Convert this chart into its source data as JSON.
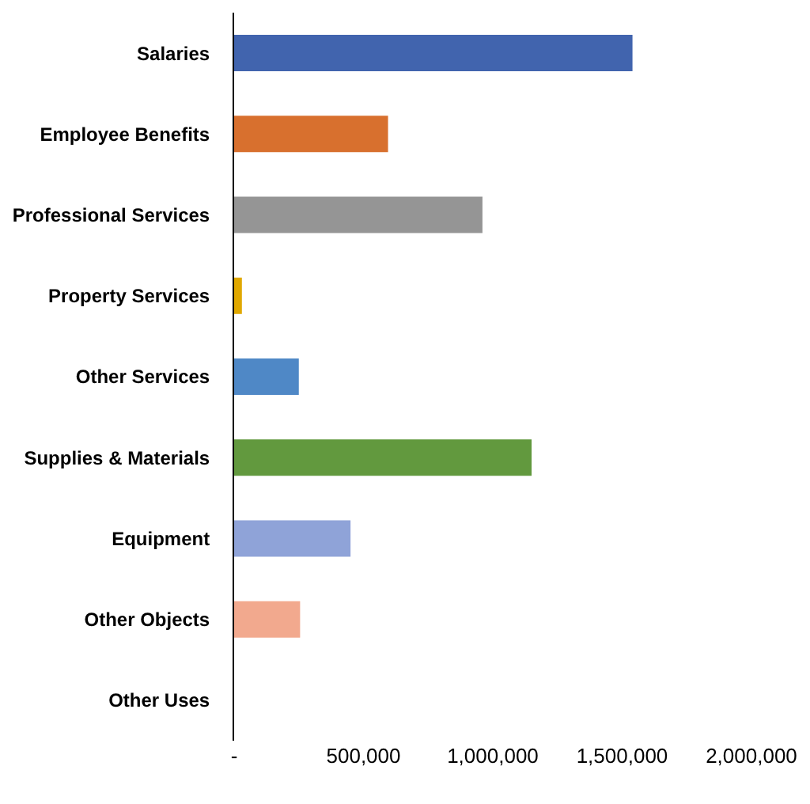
{
  "chart_data": {
    "type": "bar",
    "orientation": "horizontal",
    "categories": [
      "Salaries",
      "Employee Benefits",
      "Professional Services",
      "Property Services",
      "Other Services",
      "Supplies & Materials",
      "Equipment",
      "Other Objects",
      "Other Uses"
    ],
    "values": [
      1540000,
      595000,
      960000,
      30000,
      250000,
      1150000,
      450000,
      255000,
      0
    ],
    "colors": [
      "#4164ae",
      "#d8702e",
      "#959595",
      "#e0a800",
      "#4f88c6",
      "#62993e",
      "#8fa3d8",
      "#f2a98e",
      "#c9a0dc"
    ],
    "xlim": [
      0,
      2000000
    ],
    "xticks": [
      {
        "value": 0,
        "label": "-"
      },
      {
        "value": 500000,
        "label": "500,000"
      },
      {
        "value": 1000000,
        "label": "1,000,000"
      },
      {
        "value": 1500000,
        "label": "1,500,000"
      },
      {
        "value": 2000000,
        "label": "2,000,000"
      }
    ]
  }
}
